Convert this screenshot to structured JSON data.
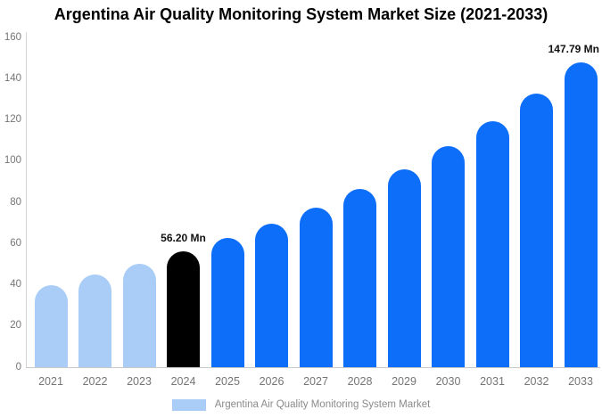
{
  "title": "Argentina Air Quality Monitoring System Market Size (2021-2033)",
  "legend": {
    "label": "Argentina Air Quality Monitoring System Market",
    "swatch_color": "#a9cdf7"
  },
  "colors": {
    "historical_bar": "#a9cdf7",
    "base_year_bar": "#000000",
    "forecast_bar": "#0d6efa",
    "axis_line": "#d4d4d4",
    "baseline": "#c9c9c9",
    "tick_text": "#757575",
    "annotation_text": "#111111",
    "title_text": "#000000",
    "legend_text": "#8a8a8a"
  },
  "chart_data": {
    "type": "bar",
    "title": "Argentina Air Quality Monitoring System Market Size (2021-2033)",
    "unit": "Mn",
    "categories": [
      "2021",
      "2022",
      "2023",
      "2024",
      "2025",
      "2026",
      "2027",
      "2028",
      "2029",
      "2030",
      "2031",
      "2032",
      "2033"
    ],
    "values": [
      40,
      45,
      50,
      56.2,
      62.5,
      69.6,
      77.5,
      86.4,
      96.2,
      107.1,
      119.2,
      132.7,
      147.79
    ],
    "bar_roles": [
      "historical",
      "historical",
      "historical",
      "base_year",
      "forecast",
      "forecast",
      "forecast",
      "forecast",
      "forecast",
      "forecast",
      "forecast",
      "forecast",
      "forecast"
    ],
    "annotations": [
      {
        "category": "2024",
        "text": "56.20 Mn"
      },
      {
        "category": "2033",
        "text": "147.79 Mn"
      }
    ],
    "xlabel": "",
    "ylabel": "",
    "ylim": [
      0,
      160
    ],
    "yticks": [
      0,
      20,
      40,
      60,
      80,
      100,
      120,
      140,
      160
    ],
    "grid": false,
    "legend_position": "bottom",
    "legend_entries": [
      "Argentina Air Quality Monitoring System Market"
    ]
  }
}
